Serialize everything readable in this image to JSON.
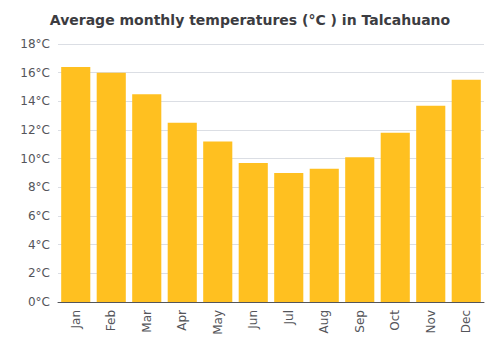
{
  "chart_data": {
    "type": "bar",
    "title": "Average monthly temperatures (°C ) in Talcahuano",
    "categories": [
      "Jan",
      "Feb",
      "Mar",
      "Apr",
      "May",
      "Jun",
      "Jul",
      "Aug",
      "Sep",
      "Oct",
      "Nov",
      "Dec"
    ],
    "values": [
      16.4,
      16.0,
      14.5,
      12.5,
      11.2,
      9.7,
      9.0,
      9.3,
      10.1,
      11.8,
      13.7,
      15.5
    ],
    "color": "#FFC020",
    "ylim": [
      0,
      18
    ],
    "yticks": [
      {
        "value": 0,
        "label": "0°C"
      },
      {
        "value": 2,
        "label": "2°C"
      },
      {
        "value": 4,
        "label": "4°C"
      },
      {
        "value": 6,
        "label": "6°C"
      },
      {
        "value": 8,
        "label": "8°C"
      },
      {
        "value": 10,
        "label": "10°C"
      },
      {
        "value": 12,
        "label": "12°C"
      },
      {
        "value": 14,
        "label": "14°C"
      },
      {
        "value": 16,
        "label": "16°C"
      },
      {
        "value": 18,
        "label": "18°C"
      }
    ],
    "grid": true
  }
}
